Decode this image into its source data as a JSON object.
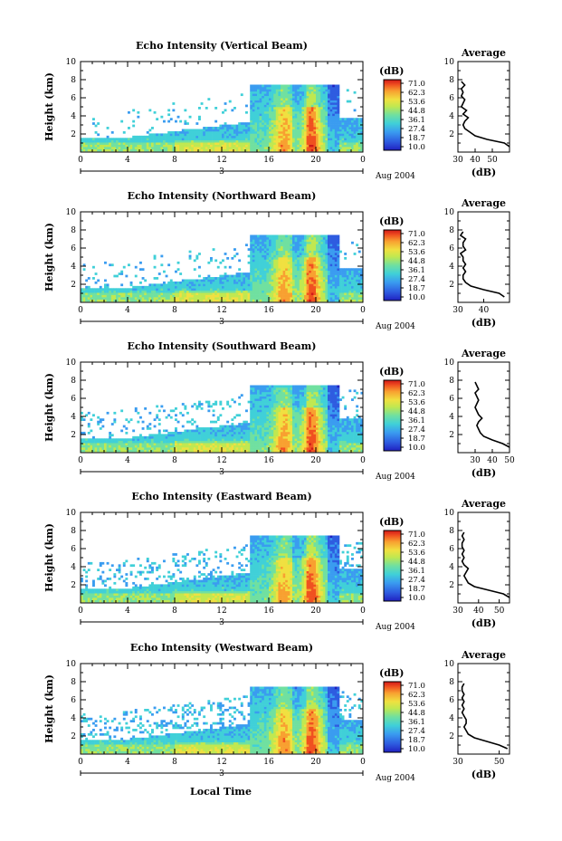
{
  "figure": {
    "x_axis_label": "Local Time",
    "date_label": "Aug 2004",
    "x_tick_labels": [
      "0",
      "4",
      "8",
      "12",
      "16",
      "20",
      "0"
    ],
    "day_marker_label": "3",
    "y_axis_label": "Height (km)",
    "y_tick_labels": [
      "2",
      "4",
      "6",
      "8",
      "10"
    ],
    "colorbar_unit": "(dB)",
    "colorbar_values": [
      "71.0",
      "62.3",
      "53.6",
      "44.8",
      "36.1",
      "27.4",
      "18.7",
      "10.0"
    ],
    "profile_title": "Average",
    "profile_xlabel": "(dB)",
    "colors": [
      "#2020c0",
      "#2e5ce0",
      "#3a9cf0",
      "#40d0d8",
      "#70e0a0",
      "#c0e850",
      "#f0e040",
      "#f8a030",
      "#f05020",
      "#d01818"
    ]
  },
  "chart_data": [
    {
      "type": "heatmap",
      "title": "Echo Intensity (Vertical Beam)",
      "xlabel": "",
      "ylabel": "Height (km)",
      "x_range_hours": [
        0,
        24
      ],
      "ylim_km": [
        0,
        10
      ],
      "zlim_db": [
        10.0,
        71.0
      ],
      "profile": {
        "title": "Average",
        "xlabel": "(dB)",
        "xlim": [
          30,
          60
        ],
        "x_tick_labels": [
          "30",
          "40",
          "50"
        ],
        "height_km": [
          0.6,
          1.0,
          1.4,
          1.8,
          2.2,
          2.6,
          3.0,
          3.4,
          3.8,
          4.2,
          4.6,
          5.0,
          5.4,
          5.8,
          6.2,
          6.6,
          7.0,
          7.4,
          7.8
        ],
        "db": [
          60,
          57,
          47,
          40,
          37,
          34,
          33,
          34,
          36,
          33,
          35,
          32,
          33,
          34,
          32,
          33,
          32,
          34,
          32
        ]
      }
    },
    {
      "type": "heatmap",
      "title": "Echo Intensity (Northward Beam)",
      "xlabel": "",
      "ylabel": "Height (km)",
      "x_range_hours": [
        0,
        24
      ],
      "ylim_km": [
        0,
        10
      ],
      "zlim_db": [
        10.0,
        71.0
      ],
      "profile": {
        "title": "Average",
        "xlabel": "(dB)",
        "xlim": [
          30,
          50
        ],
        "x_tick_labels": [
          "30",
          "40"
        ],
        "height_km": [
          0.6,
          1.0,
          1.4,
          1.8,
          2.2,
          2.6,
          3.0,
          3.4,
          3.8,
          4.2,
          4.6,
          5.0,
          5.4,
          5.8,
          6.2,
          6.6,
          7.0,
          7.4,
          7.8
        ],
        "db": [
          48,
          46,
          40,
          35,
          33,
          32,
          32,
          33,
          32,
          33,
          32,
          32,
          31,
          33,
          32,
          32,
          33,
          31,
          32
        ]
      }
    },
    {
      "type": "heatmap",
      "title": "Echo Intensity (Southward Beam)",
      "xlabel": "",
      "ylabel": "Height (km)",
      "x_range_hours": [
        0,
        24
      ],
      "ylim_km": [
        0,
        10
      ],
      "zlim_db": [
        10.0,
        71.0
      ],
      "profile": {
        "title": "Average",
        "xlabel": "(dB)",
        "xlim": [
          20,
          50
        ],
        "x_tick_labels": [
          "30",
          "40",
          "50"
        ],
        "height_km": [
          0.6,
          1.0,
          1.4,
          1.8,
          2.2,
          2.6,
          3.0,
          3.4,
          3.8,
          4.2,
          4.6,
          5.0,
          5.4,
          5.8,
          6.2,
          6.6,
          7.0,
          7.4,
          7.8
        ],
        "db": [
          50,
          46,
          40,
          35,
          33,
          32,
          31,
          32,
          34,
          32,
          31,
          30,
          31,
          32,
          31,
          30,
          32,
          31,
          30
        ]
      }
    },
    {
      "type": "heatmap",
      "title": "Echo Intensity (Eastward Beam)",
      "xlabel": "",
      "ylabel": "Height (km)",
      "x_range_hours": [
        0,
        24
      ],
      "ylim_km": [
        0,
        10
      ],
      "zlim_db": [
        10.0,
        71.0
      ],
      "profile": {
        "title": "Average",
        "xlabel": "(dB)",
        "xlim": [
          30,
          55
        ],
        "x_tick_labels": [
          "30",
          "40",
          "50"
        ],
        "height_km": [
          0.6,
          1.0,
          1.4,
          1.8,
          2.2,
          2.6,
          3.0,
          3.4,
          3.8,
          4.2,
          4.6,
          5.0,
          5.4,
          5.8,
          6.2,
          6.6,
          7.0,
          7.4,
          7.8
        ],
        "db": [
          55,
          52,
          45,
          38,
          35,
          34,
          33,
          34,
          35,
          33,
          32,
          33,
          32,
          33,
          32,
          32,
          33,
          32,
          33
        ]
      }
    },
    {
      "type": "heatmap",
      "title": "Echo Intensity (Westward Beam)",
      "xlabel": "Local Time",
      "ylabel": "Height (km)",
      "x_range_hours": [
        0,
        24
      ],
      "ylim_km": [
        0,
        10
      ],
      "zlim_db": [
        10.0,
        71.0
      ],
      "profile": {
        "title": "Average",
        "xlabel": "(dB)",
        "xlim": [
          30,
          55
        ],
        "x_tick_labels": [
          "30",
          "50"
        ],
        "height_km": [
          0.6,
          1.0,
          1.4,
          1.8,
          2.2,
          2.6,
          3.0,
          3.4,
          3.8,
          4.2,
          4.6,
          5.0,
          5.4,
          5.8,
          6.2,
          6.6,
          7.0,
          7.4,
          7.8
        ],
        "db": [
          54,
          50,
          44,
          38,
          35,
          34,
          33,
          34,
          34,
          33,
          32,
          33,
          32,
          33,
          32,
          33,
          32,
          32,
          33
        ]
      }
    }
  ]
}
